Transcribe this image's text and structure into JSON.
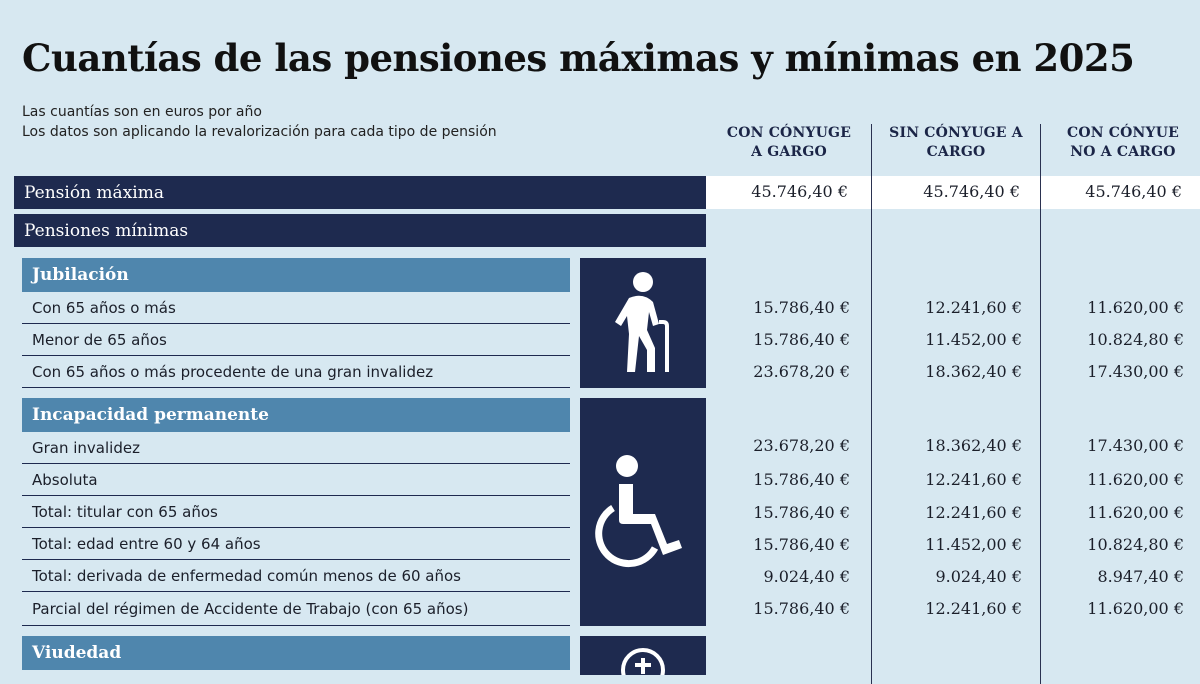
{
  "title": "Cuantías de las pensiones máximas y mínimas en 2025",
  "subtitle_1": "Las cuantías son en euros por año",
  "subtitle_2": "Los datos son aplicando la revalorización para cada tipo de pensión",
  "columns": [
    {
      "line1": "CON CÓNYUGE",
      "line2": "A GARGO"
    },
    {
      "line1": "SIN CÓNYUGE A",
      "line2": "CARGO"
    },
    {
      "line1": "CON CÓNYUE",
      "line2": "NO A CARGO"
    }
  ],
  "max_pension": {
    "label": "Pensión máxima",
    "values": [
      "45.746,40 €",
      "45.746,40 €",
      "45.746,40 €"
    ]
  },
  "min_pensions_label": "Pensiones mínimas",
  "sections": [
    {
      "name": "Jubilación",
      "icon": "elderly-person-icon",
      "rows": [
        {
          "label": "Con 65 años o más",
          "values": [
            "15.786,40 €",
            "12.241,60 €",
            "11.620,00 €"
          ]
        },
        {
          "label": "Menor de 65 años",
          "values": [
            "15.786,40 €",
            "11.452,00 €",
            "10.824,80 €"
          ]
        },
        {
          "label": "Con 65 años o más procedente de una gran invalidez",
          "values": [
            "23.678,20 €",
            "18.362,40 €",
            "17.430,00 €"
          ]
        }
      ]
    },
    {
      "name": "Incapacidad permanente",
      "icon": "wheelchair-icon",
      "rows": [
        {
          "label": "Gran invalidez",
          "values": [
            "23.678,20 €",
            "18.362,40 €",
            "17.430,00 €"
          ]
        },
        {
          "label": "Absoluta",
          "values": [
            "15.786,40 €",
            "12.241,60 €",
            "11.620,00 €"
          ]
        },
        {
          "label": "Total: titular con 65 años",
          "values": [
            "15.786,40 €",
            "12.241,60 €",
            "11.620,00 €"
          ]
        },
        {
          "label": "Total: edad entre 60 y 64 años",
          "values": [
            "15.786,40 €",
            "11.452,00 €",
            "10.824,80 €"
          ]
        },
        {
          "label": "Total: derivada de enfermedad común menos de 60 años",
          "values": [
            "9.024,40 €",
            "9.024,40 €",
            "8.947,40 €"
          ]
        },
        {
          "label": "Parcial del régimen de Accidente de Trabajo (con 65 años)",
          "values": [
            "15.786,40 €",
            "12.241,60 €",
            "11.620,00 €"
          ]
        }
      ]
    },
    {
      "name": "Viudedad",
      "icon": "cross-circle-icon",
      "rows": []
    }
  ]
}
